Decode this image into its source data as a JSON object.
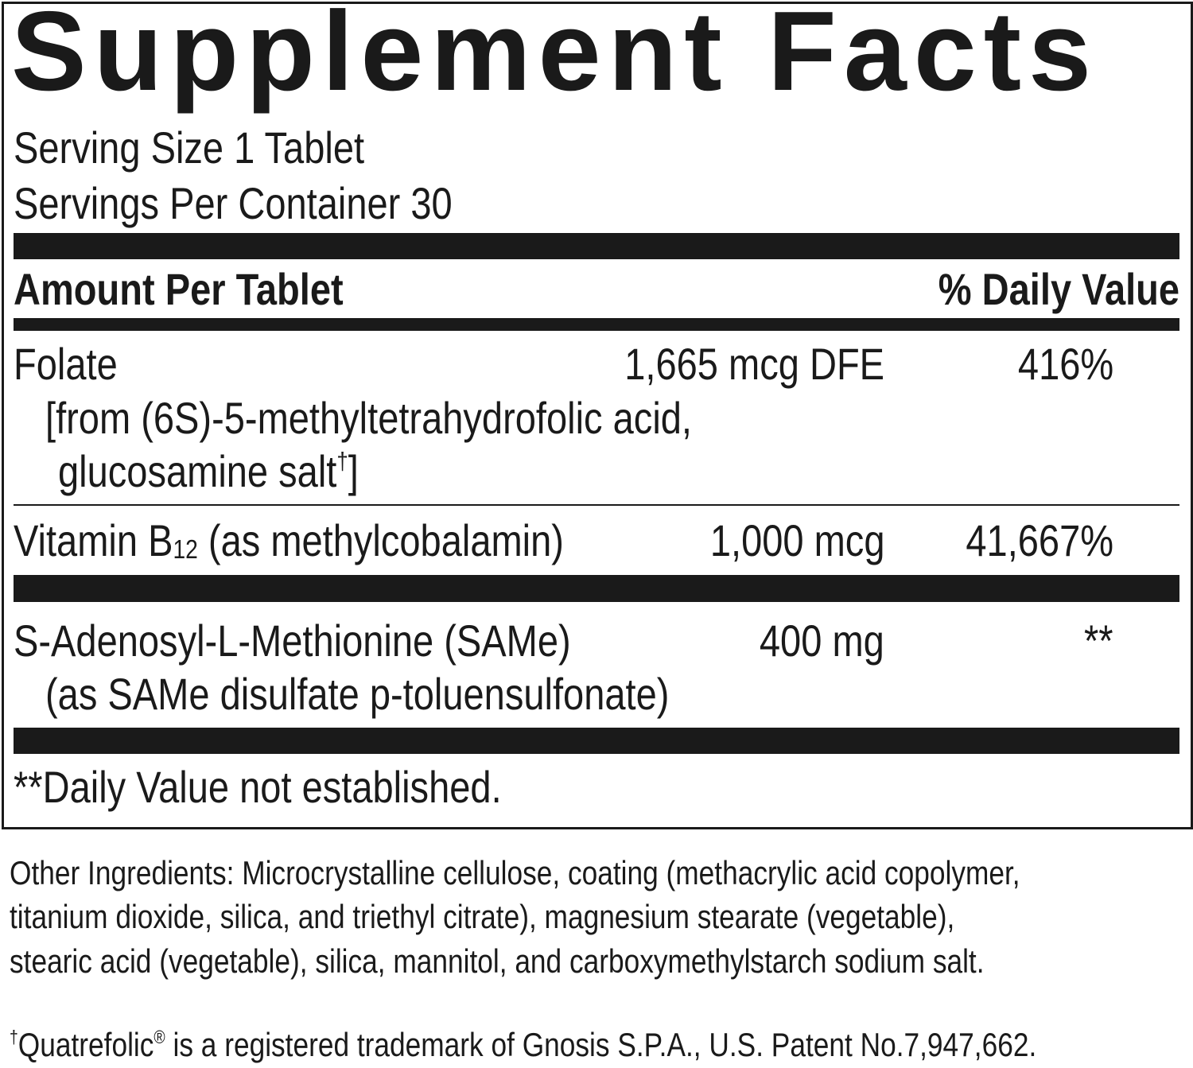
{
  "title": "Supplement Facts",
  "serving_size": "Serving Size 1 Tablet",
  "servings_per_container": "Servings Per Container 30",
  "header": {
    "amount": "Amount Per Tablet",
    "daily_value": "% Daily Value"
  },
  "rows": [
    {
      "name": "Folate",
      "sub_lines": [
        "[from (6S)-5-methyltetrahydrofolic acid,",
        "glucosamine salt"
      ],
      "sub_mark": "†",
      "sub_close": "]",
      "amount": "1,665 mcg DFE",
      "dv": "416%"
    },
    {
      "name_pre": "Vitamin B",
      "name_sub": "12",
      "name_post": " (as methylcobalamin)",
      "amount": "1,000 mcg",
      "dv": "41,667%"
    },
    {
      "name": "S-Adenosyl-L-Methionine (SAMe)",
      "sub_lines": [
        "(as SAMe disulfate p-toluensulfonate)"
      ],
      "amount": "400 mg",
      "dv": "**"
    }
  ],
  "footnote": "**Daily Value not established.",
  "other_ingredients": [
    "Other Ingredients: Microcrystalline cellulose, coating (methacrylic acid copolymer,",
    "titanium dioxide, silica, and triethyl citrate), magnesium stearate (vegetable),",
    "stearic acid (vegetable), silica, mannitol, and carboxymethylstarch sodium salt."
  ],
  "trademark": {
    "mark": "†",
    "brand": "Quatrefolic",
    "reg": "®",
    "text": " is a registered trademark of Gnosis S.P.A., U.S. Patent No.7,947,662."
  }
}
